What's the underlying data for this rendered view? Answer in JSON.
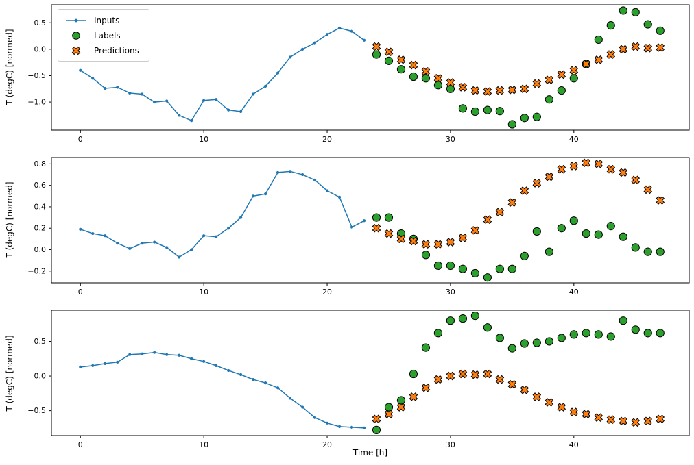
{
  "figure": {
    "xlabel": "Time [h]",
    "ylabel": "T (degC) [normed]",
    "legend": [
      "Inputs",
      "Labels",
      "Predictions"
    ],
    "colors": {
      "inputs": "#1f77b4",
      "labels": "#2ca02c",
      "predictions": "#ff7f0e"
    }
  },
  "chart_data": [
    {
      "type": "line",
      "title": "",
      "xlabel": "",
      "ylabel": "T (degC) [normed]",
      "xlim": [
        -2.35,
        49.35
      ],
      "ylim": [
        -1.53,
        0.84
      ],
      "xticks": [
        0,
        10,
        20,
        30,
        40
      ],
      "yticks": [
        0.5,
        0.0,
        -0.5,
        -1.0
      ],
      "grid": false,
      "legend_position": "upper left",
      "series": [
        {
          "name": "Inputs",
          "type": "line",
          "x": [
            0,
            1,
            2,
            3,
            4,
            5,
            6,
            7,
            8,
            9,
            10,
            11,
            12,
            13,
            14,
            15,
            16,
            17,
            18,
            19,
            20,
            21,
            22,
            23
          ],
          "y": [
            -0.4,
            -0.55,
            -0.74,
            -0.72,
            -0.83,
            -0.85,
            -1.0,
            -0.98,
            -1.25,
            -1.35,
            -0.97,
            -0.95,
            -1.15,
            -1.18,
            -0.85,
            -0.7,
            -0.45,
            -0.15,
            0.0,
            0.12,
            0.28,
            0.4,
            0.34,
            0.17
          ]
        },
        {
          "name": "Labels",
          "type": "scatter-circle",
          "x": [
            24,
            25,
            26,
            27,
            28,
            29,
            30,
            31,
            32,
            33,
            34,
            35,
            36,
            37,
            38,
            39,
            40,
            41,
            42,
            43,
            44,
            45,
            46,
            47
          ],
          "y": [
            -0.1,
            -0.22,
            -0.38,
            -0.52,
            -0.55,
            -0.68,
            -0.75,
            -1.12,
            -1.18,
            -1.15,
            -1.17,
            -1.42,
            -1.3,
            -1.28,
            -0.95,
            -0.78,
            -0.55,
            -0.28,
            0.18,
            0.45,
            0.73,
            0.7,
            0.47,
            0.35
          ]
        },
        {
          "name": "Predictions",
          "type": "scatter-x",
          "x": [
            24,
            25,
            26,
            27,
            28,
            29,
            30,
            31,
            32,
            33,
            34,
            35,
            36,
            37,
            38,
            39,
            40,
            41,
            42,
            43,
            44,
            45,
            46,
            47
          ],
          "y": [
            0.05,
            -0.05,
            -0.2,
            -0.3,
            -0.42,
            -0.55,
            -0.63,
            -0.72,
            -0.78,
            -0.8,
            -0.78,
            -0.77,
            -0.75,
            -0.65,
            -0.58,
            -0.48,
            -0.4,
            -0.28,
            -0.2,
            -0.1,
            0.0,
            0.05,
            0.02,
            0.03
          ]
        }
      ]
    },
    {
      "type": "line",
      "title": "",
      "xlabel": "",
      "ylabel": "T (degC) [normed]",
      "xlim": [
        -2.35,
        49.35
      ],
      "ylim": [
        -0.31,
        0.86
      ],
      "xticks": [
        0,
        10,
        20,
        30,
        40
      ],
      "yticks": [
        0.8,
        0.6,
        0.4,
        0.2,
        0.0,
        -0.2
      ],
      "grid": false,
      "series": [
        {
          "name": "Inputs",
          "type": "line",
          "x": [
            0,
            1,
            2,
            3,
            4,
            5,
            6,
            7,
            8,
            9,
            10,
            11,
            12,
            13,
            14,
            15,
            16,
            17,
            18,
            19,
            20,
            21,
            22,
            23
          ],
          "y": [
            0.19,
            0.15,
            0.13,
            0.06,
            0.01,
            0.06,
            0.07,
            0.02,
            -0.07,
            0.0,
            0.13,
            0.12,
            0.2,
            0.3,
            0.5,
            0.52,
            0.72,
            0.73,
            0.7,
            0.65,
            0.55,
            0.49,
            0.21,
            0.27
          ]
        },
        {
          "name": "Labels",
          "type": "scatter-circle",
          "x": [
            24,
            25,
            26,
            27,
            28,
            29,
            30,
            31,
            32,
            33,
            34,
            35,
            36,
            37,
            38,
            39,
            40,
            41,
            42,
            43,
            44,
            45,
            46,
            47
          ],
          "y": [
            0.3,
            0.3,
            0.15,
            0.1,
            -0.05,
            -0.15,
            -0.15,
            -0.18,
            -0.22,
            -0.26,
            -0.18,
            -0.18,
            -0.06,
            0.17,
            -0.02,
            0.2,
            0.27,
            0.15,
            0.14,
            0.22,
            0.12,
            0.02,
            -0.02,
            -0.02
          ]
        },
        {
          "name": "Predictions",
          "type": "scatter-x",
          "x": [
            24,
            25,
            26,
            27,
            28,
            29,
            30,
            31,
            32,
            33,
            34,
            35,
            36,
            37,
            38,
            39,
            40,
            41,
            42,
            43,
            44,
            45,
            46,
            47
          ],
          "y": [
            0.2,
            0.15,
            0.1,
            0.08,
            0.05,
            0.05,
            0.07,
            0.11,
            0.18,
            0.28,
            0.35,
            0.44,
            0.55,
            0.62,
            0.68,
            0.75,
            0.78,
            0.81,
            0.8,
            0.75,
            0.72,
            0.65,
            0.56,
            0.46
          ]
        }
      ]
    },
    {
      "type": "line",
      "title": "",
      "xlabel": "Time [h]",
      "ylabel": "T (degC) [normed]",
      "xlim": [
        -2.35,
        49.35
      ],
      "ylim": [
        -0.86,
        0.95
      ],
      "xticks": [
        0,
        10,
        20,
        30,
        40
      ],
      "yticks": [
        0.5,
        0.0,
        -0.5
      ],
      "grid": false,
      "series": [
        {
          "name": "Inputs",
          "type": "line",
          "x": [
            0,
            1,
            2,
            3,
            4,
            5,
            6,
            7,
            8,
            9,
            10,
            11,
            12,
            13,
            14,
            15,
            16,
            17,
            18,
            19,
            20,
            21,
            22,
            23
          ],
          "y": [
            0.13,
            0.15,
            0.18,
            0.2,
            0.31,
            0.32,
            0.34,
            0.31,
            0.3,
            0.25,
            0.21,
            0.15,
            0.08,
            0.02,
            -0.05,
            -0.1,
            -0.17,
            -0.32,
            -0.45,
            -0.6,
            -0.68,
            -0.73,
            -0.74,
            -0.75
          ]
        },
        {
          "name": "Labels",
          "type": "scatter-circle",
          "x": [
            24,
            25,
            26,
            27,
            28,
            29,
            30,
            31,
            32,
            33,
            34,
            35,
            36,
            37,
            38,
            39,
            40,
            41,
            42,
            43,
            44,
            45,
            46,
            47
          ],
          "y": [
            -0.78,
            -0.45,
            -0.35,
            0.03,
            0.41,
            0.62,
            0.8,
            0.83,
            0.87,
            0.7,
            0.55,
            0.4,
            0.47,
            0.48,
            0.5,
            0.55,
            0.6,
            0.62,
            0.6,
            0.57,
            0.8,
            0.67,
            0.62,
            0.62
          ]
        },
        {
          "name": "Predictions",
          "type": "scatter-x",
          "x": [
            24,
            25,
            26,
            27,
            28,
            29,
            30,
            31,
            32,
            33,
            34,
            35,
            36,
            37,
            38,
            39,
            40,
            41,
            42,
            43,
            44,
            45,
            46,
            47
          ],
          "y": [
            -0.62,
            -0.55,
            -0.45,
            -0.3,
            -0.17,
            -0.05,
            0.0,
            0.03,
            0.02,
            0.03,
            -0.05,
            -0.12,
            -0.2,
            -0.3,
            -0.38,
            -0.45,
            -0.52,
            -0.55,
            -0.6,
            -0.63,
            -0.65,
            -0.67,
            -0.65,
            -0.62
          ]
        }
      ]
    }
  ]
}
